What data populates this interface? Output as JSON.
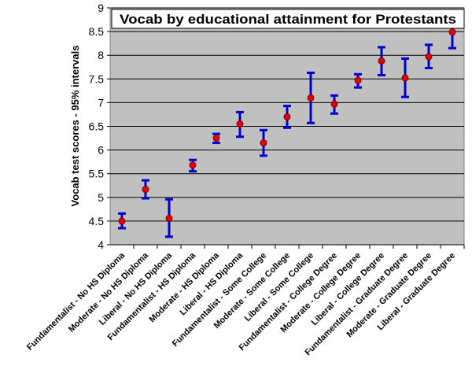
{
  "chart_data": {
    "type": "scatter",
    "title": "Vocab by educational attainment for Protestants",
    "xlabel": "",
    "ylabel": "Vocab test scores - 95% intervals",
    "ylim": [
      4,
      9
    ],
    "yticks": [
      "4",
      "4.5",
      "5",
      "5.5",
      "6",
      "6.5",
      "7",
      "7.5",
      "8",
      "8.5",
      "9"
    ],
    "grid": true,
    "colors": {
      "plot_bg": "#c0c0c0",
      "point": "#e00000",
      "error_bar": "#0000cc",
      "grid": "#000000"
    },
    "categories": [
      "Fundamentalist - No HS Diploma",
      "Moderate - No HS Diploma",
      "Liberal - No HS Diploma",
      "Fundamentalist - HS Diploma",
      "Moderate - HS Diploma",
      "Liberal - HS Diploma",
      "Fundamentalist - Some College",
      "Moderate - Some College",
      "Liberal - Some College",
      "Fundamentalist - College Degree",
      "Moderate - College Degree",
      "Liberal - College Degree",
      "Fundamentalist - Graduate Degree",
      "Moderate - Graduate Degree",
      "Liberal - Graduate Degree"
    ],
    "values": [
      4.5,
      5.17,
      4.56,
      5.68,
      6.25,
      6.55,
      6.15,
      6.7,
      7.1,
      6.97,
      7.47,
      7.88,
      7.52,
      7.97,
      8.49
    ],
    "lower": [
      4.35,
      4.98,
      4.17,
      5.55,
      6.15,
      6.28,
      5.88,
      6.47,
      6.57,
      6.77,
      7.32,
      7.58,
      7.12,
      7.73,
      8.15
    ],
    "upper": [
      4.66,
      5.36,
      4.96,
      5.79,
      6.34,
      6.8,
      6.42,
      6.93,
      7.63,
      7.15,
      7.6,
      8.17,
      7.93,
      8.22,
      8.82
    ]
  }
}
